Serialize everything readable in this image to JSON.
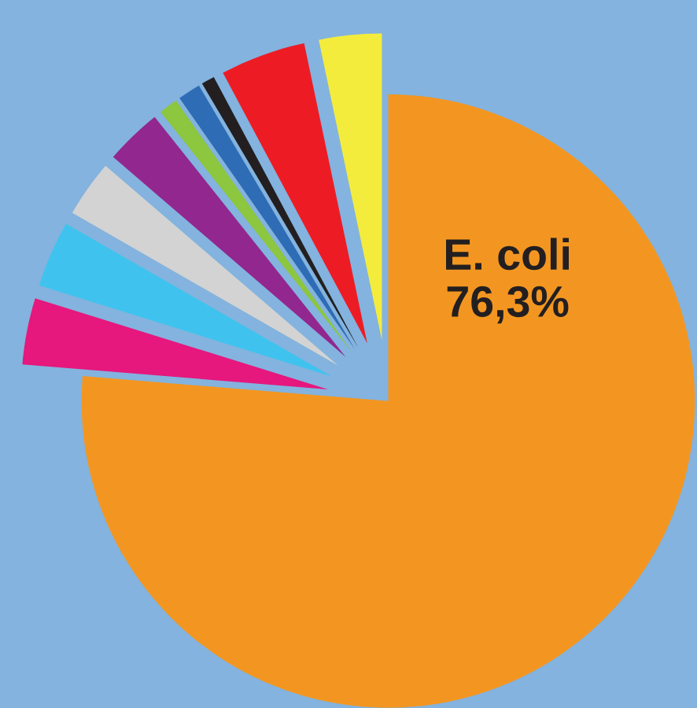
{
  "chart_data": {
    "type": "pie",
    "categories": [
      null,
      null,
      null,
      null,
      null,
      null,
      null,
      null,
      null,
      "E. coli"
    ],
    "values": [
      3.3,
      4.5,
      0.7,
      1.2,
      1,
      3,
      3,
      3.5,
      3.5,
      76.3
    ],
    "value_labels": [
      null,
      null,
      null,
      null,
      null,
      null,
      null,
      null,
      null,
      "76,3%"
    ],
    "colors": [
      "#f4ec3d",
      "#ed1c24",
      "#231f20",
      "#2e6db5",
      "#8dc63f",
      "#92278f",
      "#d3d3d3",
      "#3fc3ee",
      "#e6177d",
      "#f39621"
    ],
    "legend": false
  }
}
